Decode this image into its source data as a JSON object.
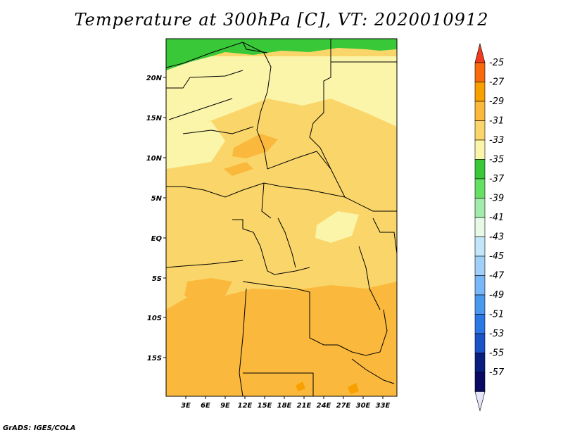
{
  "title": "Temperature at 300hPa [C], VT: 2020010912",
  "footer": "GrADS: IGES/COLA",
  "map": {
    "lon_ticks": [
      "3E",
      "6E",
      "9E",
      "12E",
      "15E",
      "18E",
      "21E",
      "24E",
      "27E",
      "30E",
      "33E"
    ],
    "lat_ticks": [
      "20N",
      "15N",
      "10N",
      "5N",
      "EQ",
      "5S",
      "10S",
      "15S"
    ]
  },
  "colorbar": {
    "levels": [
      "-25",
      "-27",
      "-29",
      "-31",
      "-33",
      "-35",
      "-37",
      "-39",
      "-41",
      "-43",
      "-45",
      "-47",
      "-49",
      "-51",
      "-53",
      "-55",
      "-57"
    ],
    "colors": [
      "#f03c1c",
      "#f86a0a",
      "#f8a000",
      "#fab83c",
      "#fad66a",
      "#fbf5aa",
      "#38c838",
      "#64e164",
      "#a0ecaa",
      "#e6fae6",
      "#c4e6fa",
      "#a0d0f8",
      "#78b8f8",
      "#4a98f0",
      "#2a78e6",
      "#1a52c8",
      "#0a1e80",
      "#0a0a64",
      "#e6e6fa"
    ]
  }
}
